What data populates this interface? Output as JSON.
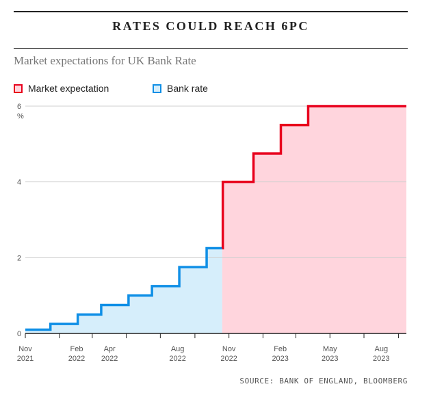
{
  "header": {
    "title": "RATES COULD REACH 6PC",
    "subtitle": "Market expectations for UK Bank Rate"
  },
  "legend": [
    {
      "label": "Market expectation",
      "color": "#e8001c",
      "fill": "#ffd5dd"
    },
    {
      "label": "Bank rate",
      "color": "#0f8fe6",
      "fill": "#d6eefb"
    }
  ],
  "source": "SOURCE: BANK OF ENGLAND, BLOOMBERG",
  "chart_data": {
    "type": "area",
    "title": "RATES COULD REACH 6PC",
    "subtitle": "Market expectations for UK Bank Rate",
    "ylabel": "%",
    "ylim": [
      0,
      6
    ],
    "yticks": [
      0,
      2,
      4,
      6
    ],
    "xlim": [
      "2021-11-01",
      "2023-09-15"
    ],
    "xticks": [
      {
        "date": "2021-11-01",
        "line1": "Nov",
        "line2": "2021"
      },
      {
        "date": "2022-02-01",
        "line1": "Feb",
        "line2": "2022"
      },
      {
        "date": "2022-04-01",
        "line1": "Apr",
        "line2": "2022"
      },
      {
        "date": "2022-08-01",
        "line1": "Aug",
        "line2": "2022"
      },
      {
        "date": "2022-11-01",
        "line1": "Nov",
        "line2": "2022"
      },
      {
        "date": "2023-02-01",
        "line1": "Feb",
        "line2": "2023"
      },
      {
        "date": "2023-05-01",
        "line1": "May",
        "line2": "2023"
      },
      {
        "date": "2023-08-01",
        "line1": "Aug",
        "line2": "2023"
      }
    ],
    "grid": true,
    "legend_position": "top-left",
    "series": [
      {
        "name": "Bank rate",
        "step": true,
        "points": [
          {
            "x": "2021-11-01",
            "y": 0.1
          },
          {
            "x": "2021-12-16",
            "y": 0.25
          },
          {
            "x": "2022-02-03",
            "y": 0.5
          },
          {
            "x": "2022-03-17",
            "y": 0.75
          },
          {
            "x": "2022-05-05",
            "y": 1.0
          },
          {
            "x": "2022-06-16",
            "y": 1.25
          },
          {
            "x": "2022-08-04",
            "y": 1.75
          },
          {
            "x": "2022-09-22",
            "y": 2.25
          },
          {
            "x": "2022-10-20",
            "y": 2.25
          }
        ]
      },
      {
        "name": "Market expectation",
        "step": true,
        "points": [
          {
            "x": "2022-10-20",
            "y": 2.25
          },
          {
            "x": "2022-10-21",
            "y": 4.0
          },
          {
            "x": "2022-12-15",
            "y": 4.75
          },
          {
            "x": "2023-02-02",
            "y": 5.5
          },
          {
            "x": "2023-03-23",
            "y": 6.0
          },
          {
            "x": "2023-09-15",
            "y": 6.0
          }
        ]
      }
    ]
  }
}
